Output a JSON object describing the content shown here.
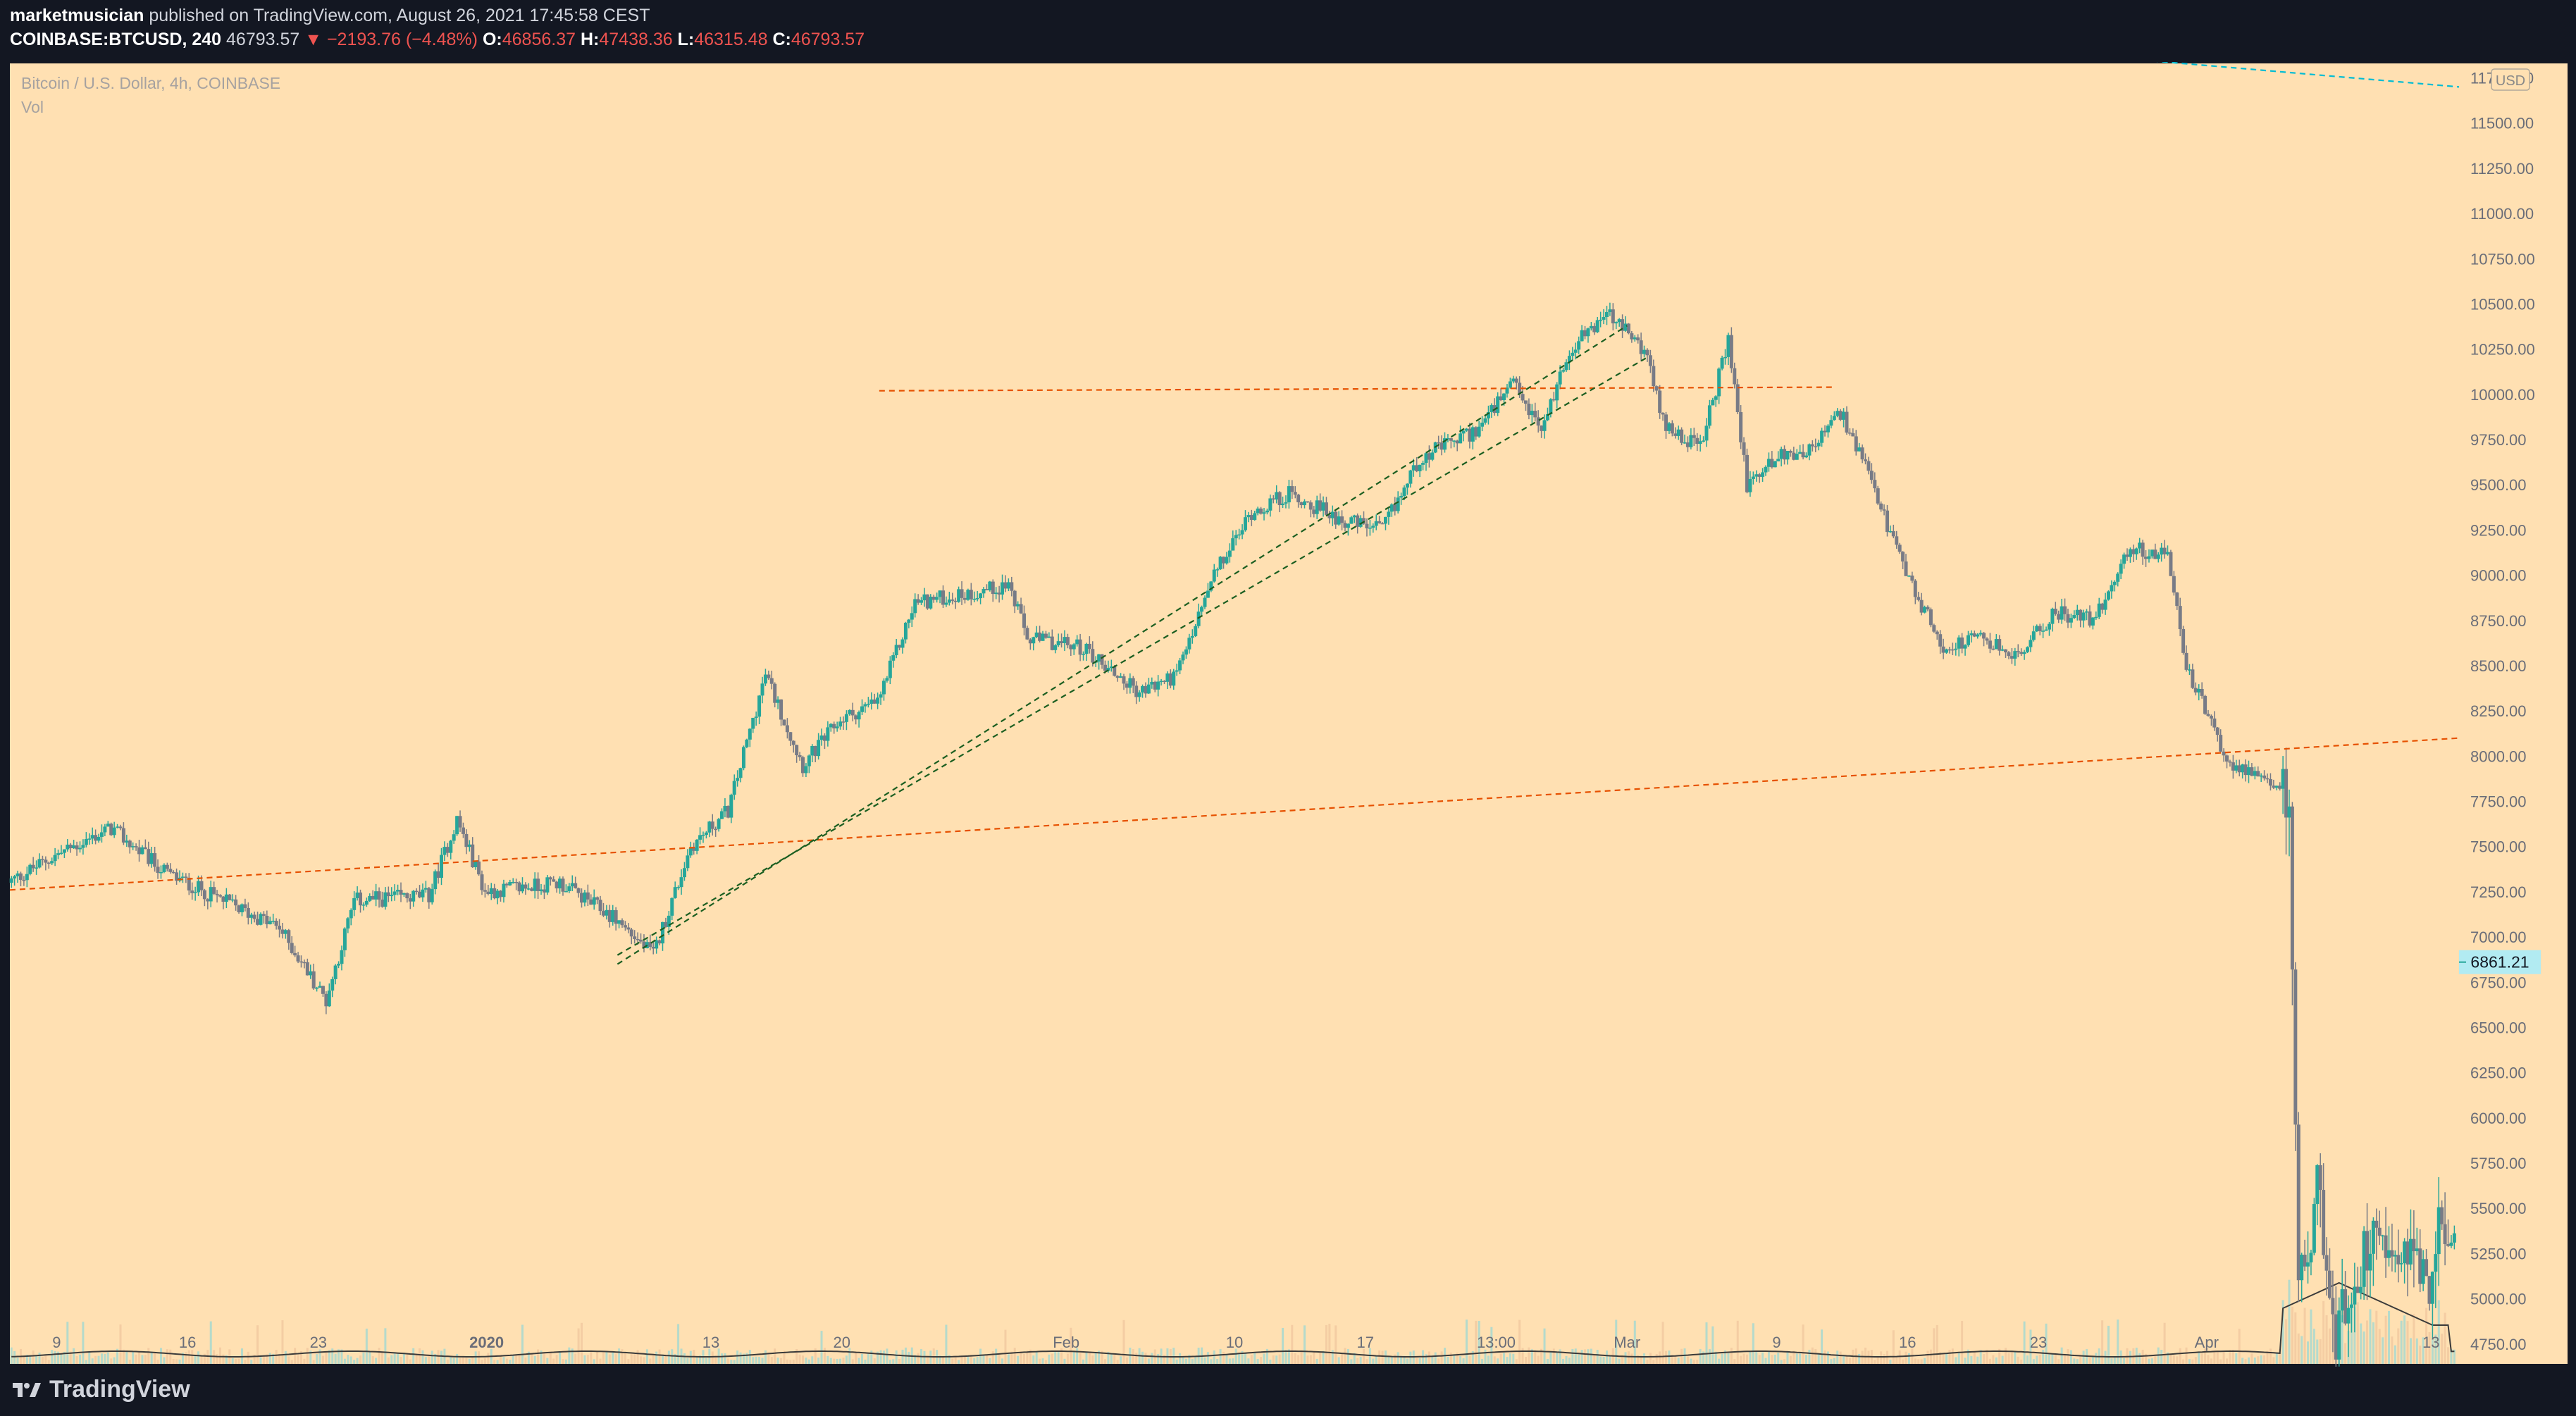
{
  "header": {
    "author": "marketmusician",
    "published_text": "published on TradingView.com, August 26, 2021 17:45:58 CEST",
    "symbol": "COINBASE:BTCUSD, 240",
    "last": "46793.57",
    "change": "▼ −2193.76 (−4.48%)",
    "o_label": "O:",
    "o_value": "46856.37",
    "h_label": "H:",
    "h_value": "47438.36",
    "l_label": "L:",
    "l_value": "46315.48",
    "c_label": "C:",
    "c_value": "46793.57"
  },
  "chart_data": {
    "type": "candlestick",
    "title": "Bitcoin / U.S. Dollar, 4h, COINBASE",
    "indicator": "Vol",
    "currency": "USD",
    "last_price_label": "6861.21",
    "background": "#ffe0b2",
    "up_color": "#26a69a",
    "down_color": "#787b86",
    "y_ticks": [
      "4750.00",
      "5000.00",
      "5250.00",
      "5500.00",
      "5750.00",
      "6000.00",
      "6250.00",
      "6500.00",
      "6750.00",
      "7000.00",
      "7250.00",
      "7500.00",
      "7750.00",
      "8000.00",
      "8250.00",
      "8500.00",
      "8750.00",
      "9000.00",
      "9250.00",
      "9500.00",
      "9750.00",
      "10000.00",
      "10250.00",
      "10500.00",
      "10750.00",
      "11000.00",
      "11250.00",
      "11500.00",
      "11750.00"
    ],
    "ylim": [
      4640,
      11830
    ],
    "x_ticks": [
      "9",
      "16",
      "23",
      "2020",
      "13",
      "20",
      "Feb",
      "10",
      "17",
      "13:00",
      "Mar",
      "9",
      "16",
      "23",
      "Apr",
      "13"
    ],
    "x_tick_days": [
      0,
      7,
      14,
      23,
      35,
      42,
      54,
      63,
      70,
      77,
      84,
      92,
      99,
      106,
      115,
      127
    ],
    "xlim_days": [
      -2.5,
      128.5
    ],
    "note": "days counted from Dec 9 2019",
    "price_path": [
      [
        -2.5,
        7300
      ],
      [
        0,
        7450
      ],
      [
        3,
        7600
      ],
      [
        6,
        7350
      ],
      [
        9,
        7200
      ],
      [
        12,
        7050
      ],
      [
        14.5,
        6650
      ],
      [
        16,
        7200
      ],
      [
        20,
        7230
      ],
      [
        21.5,
        7650
      ],
      [
        23,
        7250
      ],
      [
        27,
        7300
      ],
      [
        30,
        7100
      ],
      [
        32,
        6900
      ],
      [
        34,
        7500
      ],
      [
        36,
        7700
      ],
      [
        38,
        8450
      ],
      [
        40,
        7950
      ],
      [
        42,
        8200
      ],
      [
        44,
        8300
      ],
      [
        46,
        8850
      ],
      [
        49,
        8900
      ],
      [
        51,
        8950
      ],
      [
        52,
        8650
      ],
      [
        55,
        8600
      ],
      [
        58,
        8350
      ],
      [
        60,
        8450
      ],
      [
        62,
        9000
      ],
      [
        64,
        9350
      ],
      [
        66,
        9450
      ],
      [
        69,
        9300
      ],
      [
        71,
        9250
      ],
      [
        73,
        9650
      ],
      [
        76,
        9800
      ],
      [
        78,
        10050
      ],
      [
        79.5,
        9800
      ],
      [
        81,
        10250
      ],
      [
        83,
        10450
      ],
      [
        85,
        10250
      ],
      [
        86,
        9850
      ],
      [
        88,
        9700
      ],
      [
        89.5,
        10300
      ],
      [
        90.5,
        9500
      ],
      [
        92,
        9650
      ],
      [
        94,
        9700
      ],
      [
        95.5,
        9900
      ],
      [
        97,
        9550
      ],
      [
        99,
        9000
      ],
      [
        101,
        8600
      ],
      [
        103,
        8650
      ],
      [
        105,
        8550
      ],
      [
        107,
        8800
      ],
      [
        109,
        8750
      ],
      [
        111,
        9150
      ],
      [
        113,
        9100
      ],
      [
        114,
        8500
      ],
      [
        116,
        8000
      ],
      [
        118,
        7850
      ],
      [
        119.5,
        7800
      ],
      [
        120,
        5000
      ],
      [
        121,
        5600
      ],
      [
        122,
        4800
      ],
      [
        124,
        5400
      ],
      [
        126,
        5300
      ],
      [
        127,
        5100
      ],
      [
        127.5,
        5350
      ]
    ],
    "levels": [
      {
        "style": "dashed",
        "color": "#e65100",
        "from": [
          -2.5,
          7260
        ],
        "to": [
          128.5,
          8100
        ]
      },
      {
        "style": "dashed",
        "color": "#e65100",
        "from": [
          44,
          10020
        ],
        "to": [
          95,
          10040
        ]
      },
      {
        "style": "dashed",
        "color": "#1b5e20",
        "from": [
          30,
          6850
        ],
        "to": [
          84,
          10380
        ]
      },
      {
        "style": "dashed",
        "color": "#1b5e20",
        "from": [
          30,
          6900
        ],
        "to": [
          85,
          10200
        ]
      },
      {
        "style": "dashed",
        "color": "#00bcd4",
        "from": [
          100,
          11950
        ],
        "to": [
          128.5,
          11700
        ]
      }
    ]
  },
  "footer": {
    "brand": "TradingView"
  }
}
